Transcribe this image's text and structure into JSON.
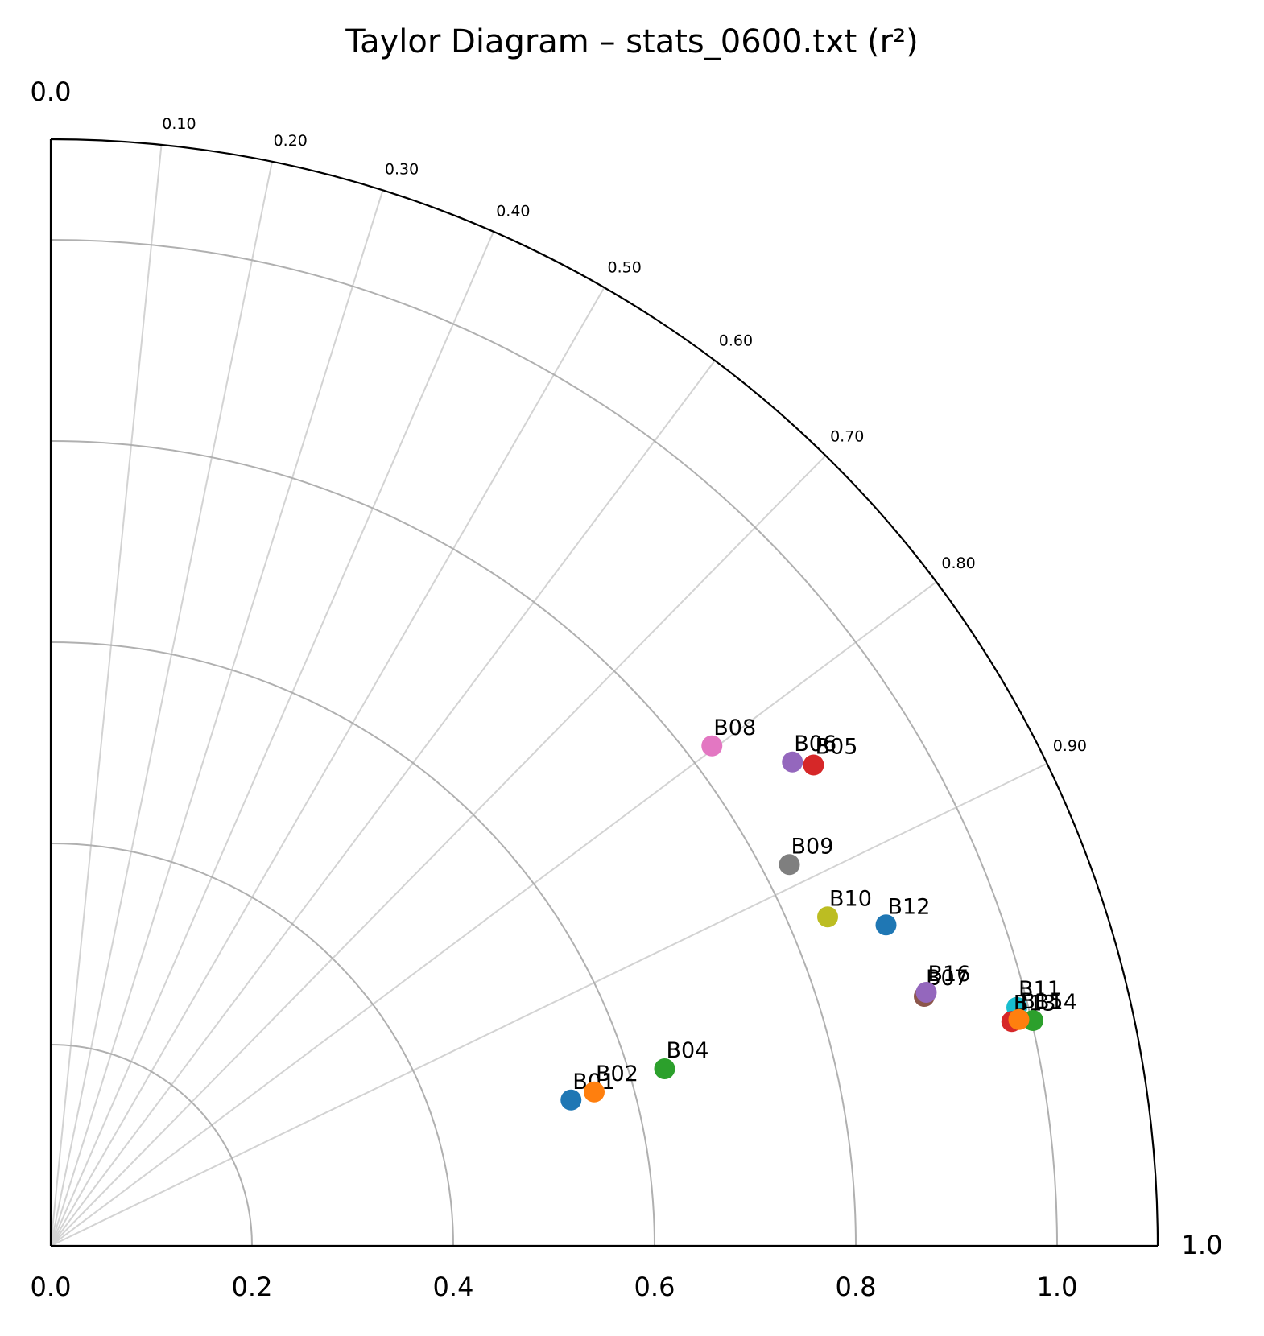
{
  "chart_data": {
    "type": "scatter",
    "projection": "taylor-quarter-polar",
    "title": "Taylor Diagram – stats_0600.txt (r²)",
    "rmax": 1.1,
    "std_ticks": [
      "0.0",
      "0.2",
      "0.4",
      "0.6",
      "0.8",
      "1.0"
    ],
    "std_tick_values": [
      0,
      0.2,
      0.4,
      0.6,
      0.8,
      1.0
    ],
    "arc_values": [
      0.2,
      0.4,
      0.6,
      0.8,
      1.0
    ],
    "r2_ticks": [
      "0.10",
      "0.20",
      "0.30",
      "0.40",
      "0.50",
      "0.60",
      "0.70",
      "0.80",
      "0.90"
    ],
    "r2_tick_values": [
      0.1,
      0.2,
      0.3,
      0.4,
      0.5,
      0.6,
      0.7,
      0.8,
      0.9
    ],
    "corner_labels": {
      "top": "0.0",
      "right": "1.0"
    },
    "grid": true,
    "points": [
      {
        "name": "B01",
        "x": 0.517,
        "y": 0.145,
        "color": "#1f77b4"
      },
      {
        "name": "B02",
        "x": 0.54,
        "y": 0.153,
        "color": "#ff7f0e"
      },
      {
        "name": "B04",
        "x": 0.61,
        "y": 0.176,
        "color": "#2ca02c"
      },
      {
        "name": "B05",
        "x": 0.758,
        "y": 0.478,
        "color": "#d62728"
      },
      {
        "name": "B06",
        "x": 0.737,
        "y": 0.481,
        "color": "#9467bd"
      },
      {
        "name": "B07",
        "x": 0.868,
        "y": 0.248,
        "color": "#8c564b"
      },
      {
        "name": "B08",
        "x": 0.657,
        "y": 0.497,
        "color": "#e377c2"
      },
      {
        "name": "B09",
        "x": 0.734,
        "y": 0.379,
        "color": "#7f7f7f"
      },
      {
        "name": "B10",
        "x": 0.772,
        "y": 0.327,
        "color": "#bcbd22"
      },
      {
        "name": "B11",
        "x": 0.96,
        "y": 0.237,
        "color": "#17becf"
      },
      {
        "name": "B12",
        "x": 0.83,
        "y": 0.319,
        "color": "#1f77b4"
      },
      {
        "name": "B13",
        "x": 0.955,
        "y": 0.223,
        "color": "#d62728"
      },
      {
        "name": "B14",
        "x": 0.976,
        "y": 0.224,
        "color": "#2ca02c"
      },
      {
        "name": "B15",
        "x": 0.962,
        "y": 0.225,
        "color": "#ff7f0e"
      },
      {
        "name": "B16",
        "x": 0.87,
        "y": 0.252,
        "color": "#9467bd"
      }
    ]
  }
}
